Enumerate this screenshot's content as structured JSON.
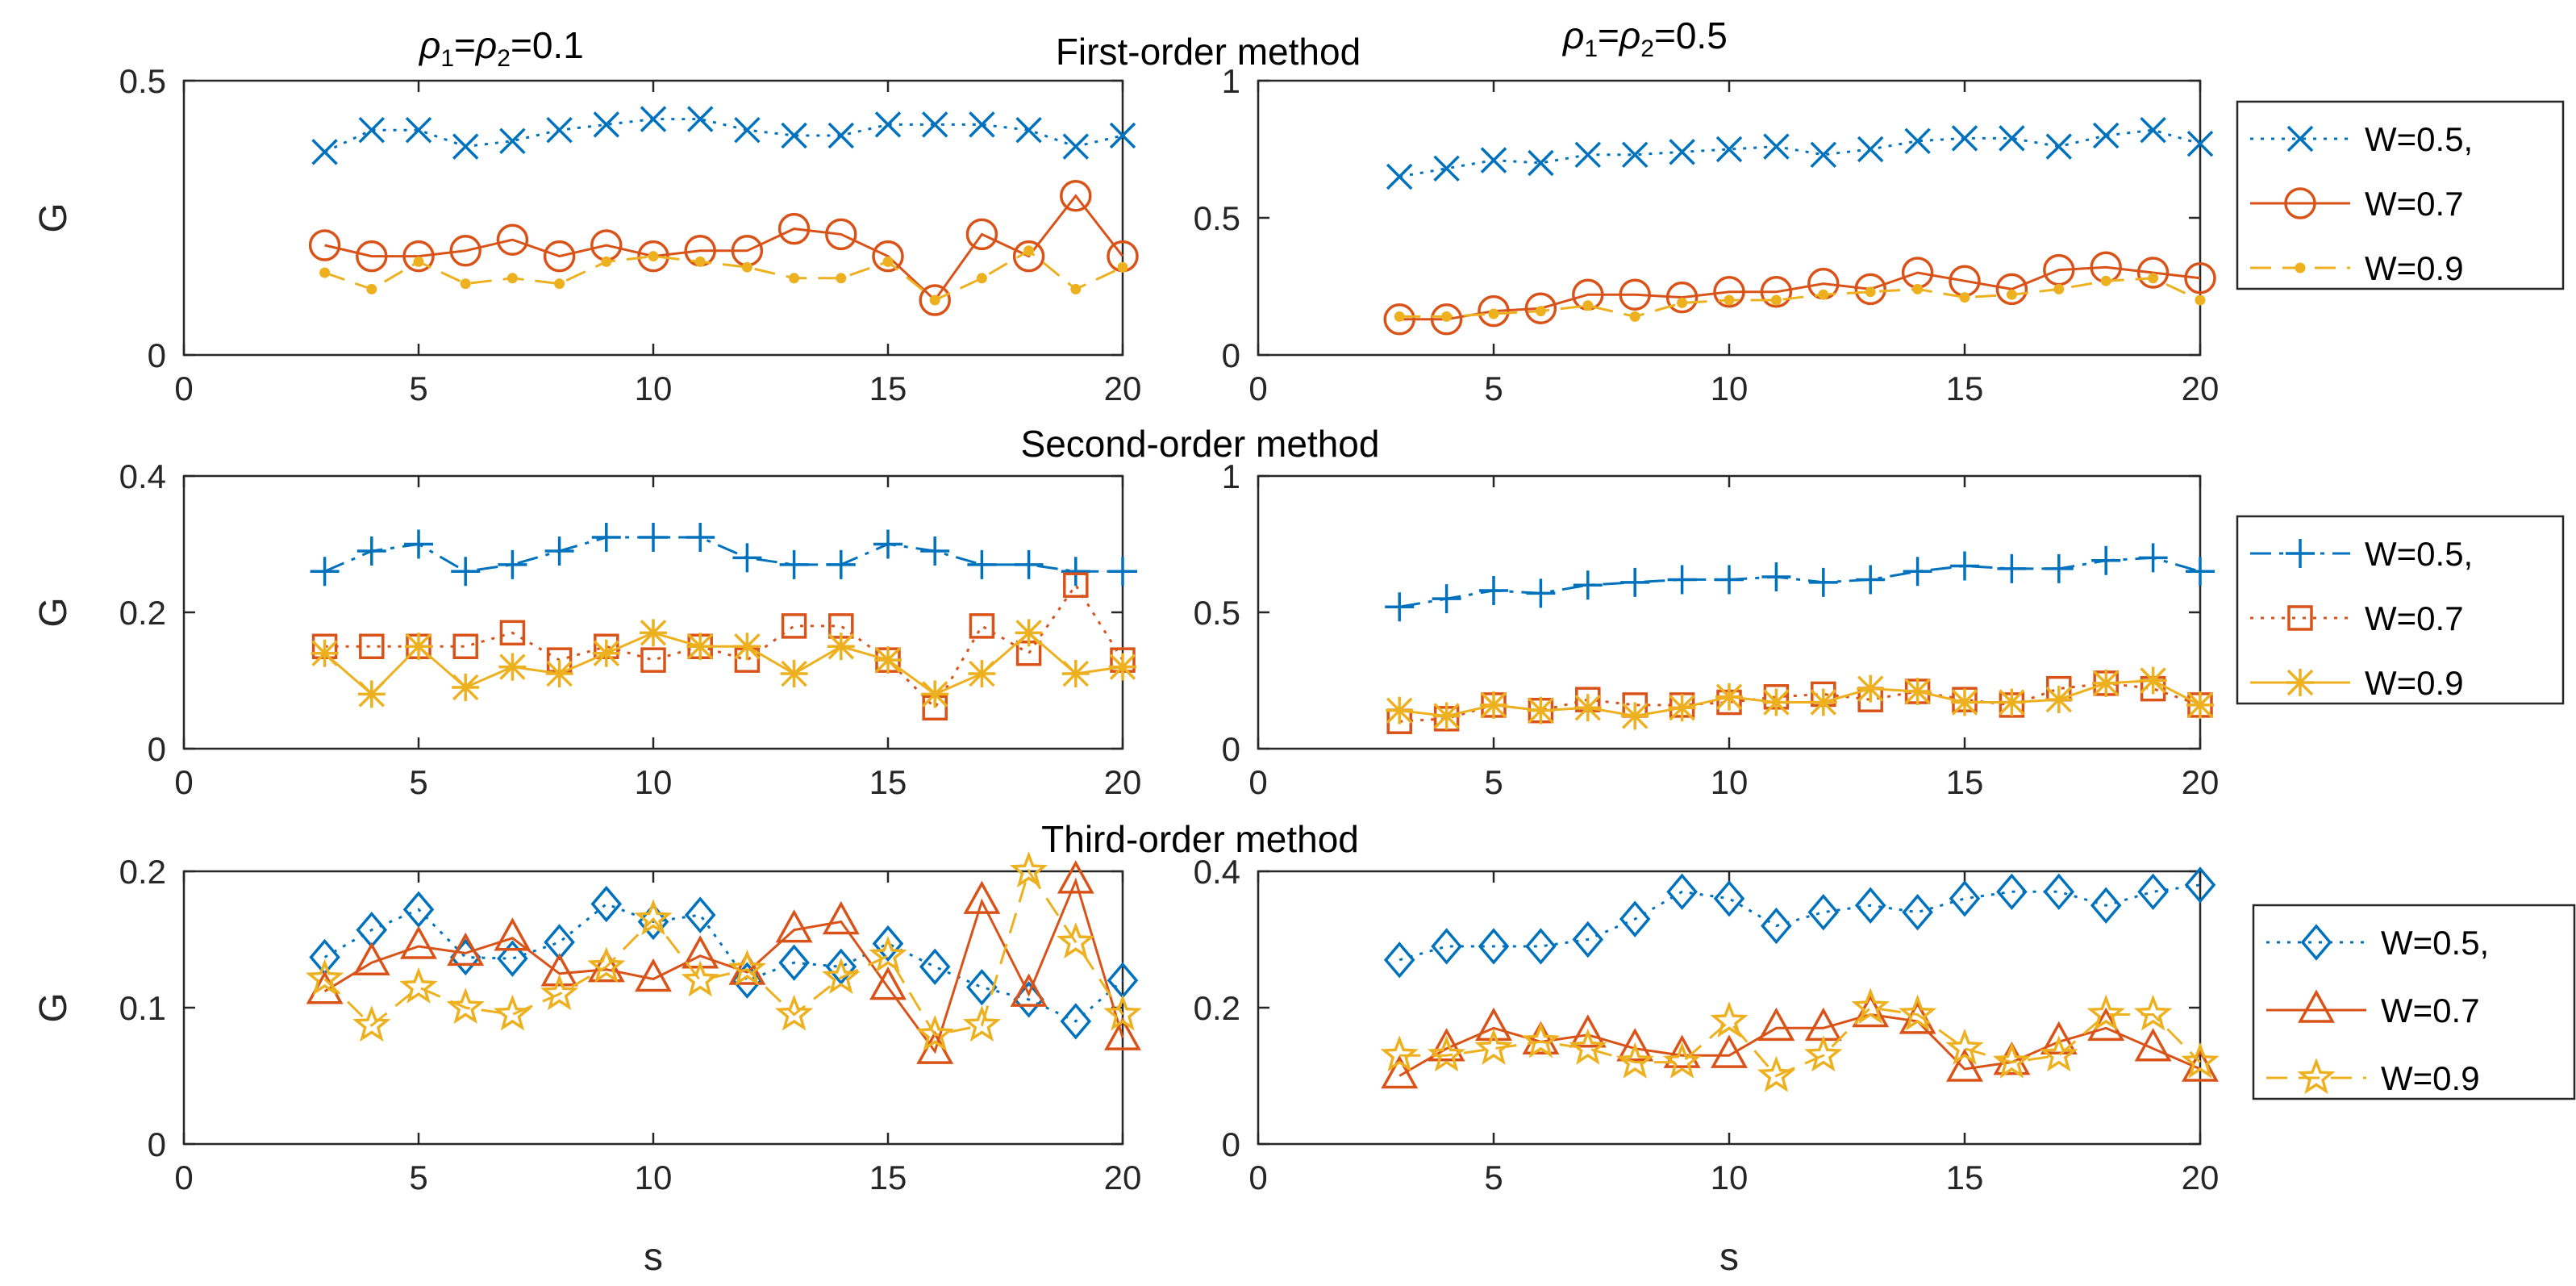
{
  "figure": {
    "col_titles": [
      {
        "rho": "ρ",
        "sub1": "1",
        "eq": "=",
        "sub2": "2",
        "val": "=0.1"
      },
      {
        "rho": "ρ",
        "sub1": "1",
        "eq": "=",
        "sub2": "2",
        "val": "=0.5"
      }
    ]
  },
  "chart_data": [
    {
      "type": "line",
      "row": 0,
      "col": 0,
      "title": "First-order method",
      "ylabel": "G",
      "xlabel": "",
      "xlim": [
        0,
        20
      ],
      "ylim": [
        0,
        0.5
      ],
      "xticks": [
        0,
        5,
        10,
        15,
        20
      ],
      "yticks": [
        "0",
        "0.5"
      ],
      "ytick_values": [
        0,
        0.5
      ],
      "x": [
        3,
        4,
        5,
        6,
        7,
        8,
        9,
        10,
        11,
        12,
        13,
        14,
        15,
        16,
        17,
        18,
        19,
        20
      ],
      "series": [
        {
          "name": "W=0.5,",
          "color": "#0072BD",
          "marker": "x",
          "dash": "dotted",
          "values": [
            0.37,
            0.41,
            0.41,
            0.38,
            0.39,
            0.41,
            0.42,
            0.43,
            0.43,
            0.41,
            0.4,
            0.4,
            0.42,
            0.42,
            0.42,
            0.41,
            0.38,
            0.4
          ]
        },
        {
          "name": "W=0.7",
          "color": "#D95319",
          "marker": "circle",
          "dash": "solid",
          "values": [
            0.2,
            0.18,
            0.18,
            0.19,
            0.21,
            0.18,
            0.2,
            0.18,
            0.19,
            0.19,
            0.23,
            0.22,
            0.18,
            0.1,
            0.22,
            0.18,
            0.29,
            0.18
          ]
        },
        {
          "name": "W=0.9",
          "color": "#EDB120",
          "marker": "dot",
          "dash": "dashed",
          "values": [
            0.15,
            0.12,
            0.17,
            0.13,
            0.14,
            0.13,
            0.17,
            0.18,
            0.17,
            0.16,
            0.14,
            0.14,
            0.17,
            0.1,
            0.14,
            0.19,
            0.12,
            0.16
          ]
        }
      ]
    },
    {
      "type": "line",
      "row": 0,
      "col": 1,
      "title": "",
      "ylabel": "",
      "xlabel": "",
      "xlim": [
        0,
        20
      ],
      "ylim": [
        0,
        1
      ],
      "xticks": [
        0,
        5,
        10,
        15,
        20
      ],
      "yticks": [
        "0",
        "0.5",
        "1"
      ],
      "ytick_values": [
        0,
        0.5,
        1
      ],
      "x": [
        3,
        4,
        5,
        6,
        7,
        8,
        9,
        10,
        11,
        12,
        13,
        14,
        15,
        16,
        17,
        18,
        19,
        20
      ],
      "series": [
        {
          "name": "W=0.5,",
          "color": "#0072BD",
          "marker": "x",
          "dash": "dotted",
          "values": [
            0.65,
            0.68,
            0.71,
            0.7,
            0.73,
            0.73,
            0.74,
            0.75,
            0.76,
            0.73,
            0.75,
            0.78,
            0.79,
            0.79,
            0.76,
            0.8,
            0.82,
            0.77
          ]
        },
        {
          "name": "W=0.7",
          "color": "#D95319",
          "marker": "circle",
          "dash": "solid",
          "values": [
            0.13,
            0.13,
            0.16,
            0.17,
            0.22,
            0.22,
            0.21,
            0.23,
            0.23,
            0.26,
            0.24,
            0.3,
            0.27,
            0.24,
            0.31,
            0.32,
            0.3,
            0.28
          ]
        },
        {
          "name": "W=0.9",
          "color": "#EDB120",
          "marker": "dot",
          "dash": "dashed",
          "values": [
            0.14,
            0.14,
            0.15,
            0.16,
            0.18,
            0.14,
            0.19,
            0.2,
            0.2,
            0.22,
            0.23,
            0.24,
            0.21,
            0.22,
            0.24,
            0.27,
            0.28,
            0.2
          ]
        }
      ]
    },
    {
      "type": "line",
      "row": 1,
      "col": 0,
      "title": "Second-order method",
      "ylabel": "G",
      "xlabel": "",
      "xlim": [
        0,
        20
      ],
      "ylim": [
        0,
        0.4
      ],
      "xticks": [
        0,
        5,
        10,
        15,
        20
      ],
      "yticks": [
        "0",
        "0.2",
        "0.4"
      ],
      "ytick_values": [
        0,
        0.2,
        0.4
      ],
      "x": [
        3,
        4,
        5,
        6,
        7,
        8,
        9,
        10,
        11,
        12,
        13,
        14,
        15,
        16,
        17,
        18,
        19,
        20
      ],
      "series": [
        {
          "name": "W=0.5,",
          "color": "#0072BD",
          "marker": "plus",
          "dash": "dashdot",
          "values": [
            0.26,
            0.29,
            0.3,
            0.26,
            0.27,
            0.29,
            0.31,
            0.31,
            0.31,
            0.28,
            0.27,
            0.27,
            0.3,
            0.29,
            0.27,
            0.27,
            0.26,
            0.26
          ]
        },
        {
          "name": "W=0.7",
          "color": "#D95319",
          "marker": "square",
          "dash": "dotted",
          "values": [
            0.15,
            0.15,
            0.15,
            0.15,
            0.17,
            0.13,
            0.15,
            0.13,
            0.15,
            0.13,
            0.18,
            0.18,
            0.13,
            0.06,
            0.18,
            0.14,
            0.24,
            0.13
          ]
        },
        {
          "name": "W=0.9",
          "color": "#EDB120",
          "marker": "asterisk",
          "dash": "solid",
          "values": [
            0.14,
            0.08,
            0.15,
            0.09,
            0.12,
            0.11,
            0.14,
            0.17,
            0.15,
            0.15,
            0.11,
            0.15,
            0.13,
            0.08,
            0.11,
            0.17,
            0.11,
            0.12
          ]
        }
      ]
    },
    {
      "type": "line",
      "row": 1,
      "col": 1,
      "title": "",
      "ylabel": "",
      "xlabel": "",
      "xlim": [
        0,
        20
      ],
      "ylim": [
        0,
        1
      ],
      "xticks": [
        0,
        5,
        10,
        15,
        20
      ],
      "yticks": [
        "0",
        "0.5",
        "1"
      ],
      "ytick_values": [
        0,
        0.5,
        1
      ],
      "x": [
        3,
        4,
        5,
        6,
        7,
        8,
        9,
        10,
        11,
        12,
        13,
        14,
        15,
        16,
        17,
        18,
        19,
        20
      ],
      "series": [
        {
          "name": "W=0.5,",
          "color": "#0072BD",
          "marker": "plus",
          "dash": "dashdot",
          "values": [
            0.52,
            0.55,
            0.58,
            0.57,
            0.6,
            0.61,
            0.62,
            0.62,
            0.63,
            0.61,
            0.62,
            0.65,
            0.67,
            0.66,
            0.66,
            0.69,
            0.7,
            0.65
          ]
        },
        {
          "name": "W=0.7",
          "color": "#D95319",
          "marker": "square",
          "dash": "dotted",
          "values": [
            0.1,
            0.11,
            0.16,
            0.14,
            0.18,
            0.16,
            0.16,
            0.17,
            0.19,
            0.2,
            0.18,
            0.21,
            0.18,
            0.16,
            0.22,
            0.24,
            0.22,
            0.16
          ]
        },
        {
          "name": "W=0.9",
          "color": "#EDB120",
          "marker": "asterisk",
          "dash": "solid",
          "values": [
            0.14,
            0.12,
            0.16,
            0.14,
            0.15,
            0.12,
            0.15,
            0.19,
            0.17,
            0.17,
            0.22,
            0.21,
            0.17,
            0.17,
            0.18,
            0.24,
            0.25,
            0.16
          ]
        }
      ]
    },
    {
      "type": "line",
      "row": 2,
      "col": 0,
      "title": "Third-order method",
      "ylabel": "G",
      "xlabel": "s",
      "xlim": [
        0,
        20
      ],
      "ylim": [
        0,
        0.2
      ],
      "xticks": [
        0,
        5,
        10,
        15,
        20
      ],
      "yticks": [
        "0",
        "0.1",
        "0.2"
      ],
      "ytick_values": [
        0,
        0.1,
        0.2
      ],
      "x": [
        3,
        4,
        5,
        6,
        7,
        8,
        9,
        10,
        11,
        12,
        13,
        14,
        15,
        16,
        17,
        18,
        19,
        20
      ],
      "series": [
        {
          "name": "W=0.5,",
          "color": "#0072BD",
          "marker": "diamond",
          "dash": "dotted",
          "values": [
            0.137,
            0.157,
            0.172,
            0.137,
            0.136,
            0.148,
            0.176,
            0.163,
            0.168,
            0.12,
            0.133,
            0.13,
            0.147,
            0.13,
            0.115,
            0.106,
            0.09,
            0.12
          ]
        },
        {
          "name": "W=0.7",
          "color": "#D95319",
          "marker": "triangle",
          "dash": "solid",
          "values": [
            0.112,
            0.133,
            0.145,
            0.14,
            0.151,
            0.125,
            0.128,
            0.121,
            0.138,
            0.126,
            0.157,
            0.163,
            0.115,
            0.068,
            0.178,
            0.11,
            0.193,
            0.078
          ]
        },
        {
          "name": "W=0.9",
          "color": "#EDB120",
          "marker": "star",
          "dash": "dashed",
          "values": [
            0.121,
            0.087,
            0.115,
            0.1,
            0.095,
            0.11,
            0.13,
            0.165,
            0.12,
            0.128,
            0.095,
            0.122,
            0.138,
            0.08,
            0.087,
            0.2,
            0.148,
            0.095
          ]
        }
      ]
    },
    {
      "type": "line",
      "row": 2,
      "col": 1,
      "title": "",
      "ylabel": "",
      "xlabel": "s",
      "xlim": [
        0,
        20
      ],
      "ylim": [
        0,
        0.4
      ],
      "xticks": [
        0,
        5,
        10,
        15,
        20
      ],
      "yticks": [
        "0",
        "0.2",
        "0.4"
      ],
      "ytick_values": [
        0,
        0.2,
        0.4
      ],
      "x": [
        3,
        4,
        5,
        6,
        7,
        8,
        9,
        10,
        11,
        12,
        13,
        14,
        15,
        16,
        17,
        18,
        19,
        20
      ],
      "series": [
        {
          "name": "W=0.5,",
          "color": "#0072BD",
          "marker": "diamond",
          "dash": "dotted",
          "values": [
            0.27,
            0.29,
            0.29,
            0.29,
            0.3,
            0.33,
            0.37,
            0.36,
            0.32,
            0.34,
            0.35,
            0.34,
            0.36,
            0.37,
            0.37,
            0.35,
            0.37,
            0.38
          ]
        },
        {
          "name": "W=0.7",
          "color": "#D95319",
          "marker": "triangle",
          "dash": "solid",
          "values": [
            0.1,
            0.14,
            0.17,
            0.15,
            0.16,
            0.14,
            0.13,
            0.13,
            0.17,
            0.17,
            0.19,
            0.18,
            0.11,
            0.12,
            0.15,
            0.17,
            0.14,
            0.11
          ]
        },
        {
          "name": "W=0.9",
          "color": "#EDB120",
          "marker": "star",
          "dash": "dashed",
          "values": [
            0.13,
            0.13,
            0.14,
            0.15,
            0.14,
            0.12,
            0.12,
            0.18,
            0.1,
            0.13,
            0.2,
            0.19,
            0.14,
            0.12,
            0.13,
            0.19,
            0.19,
            0.12
          ]
        }
      ]
    }
  ]
}
